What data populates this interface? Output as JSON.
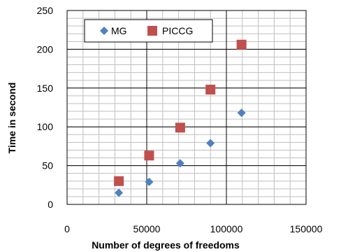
{
  "chart_data": {
    "type": "scatter",
    "xlabel": "Number of degrees of freedoms",
    "ylabel": "Time in second",
    "xlim": [
      0,
      150000
    ],
    "ylim": [
      0,
      250
    ],
    "x_major_ticks": [
      0,
      50000,
      100000,
      150000
    ],
    "x_tick_labels": [
      "0",
      "50000",
      "100000",
      "150000"
    ],
    "y_major_ticks": [
      0,
      50,
      100,
      150,
      200,
      250
    ],
    "y_tick_labels": [
      "0",
      "50",
      "100",
      "150",
      "200",
      "250"
    ],
    "minor_grid": true,
    "x_minor_step": 10000,
    "y_minor_step": 10,
    "legend_position": "top-left",
    "series": [
      {
        "name": "MG",
        "marker": "diamond",
        "color": "#4F81BD",
        "x": [
          32500,
          51500,
          71000,
          90000,
          109500
        ],
        "y": [
          15,
          29,
          53,
          79,
          118
        ]
      },
      {
        "name": "PICCG",
        "marker": "square",
        "color": "#C0504D",
        "x": [
          32500,
          51500,
          71000,
          90000,
          109500
        ],
        "y": [
          30,
          63,
          99,
          148,
          206
        ]
      }
    ]
  }
}
